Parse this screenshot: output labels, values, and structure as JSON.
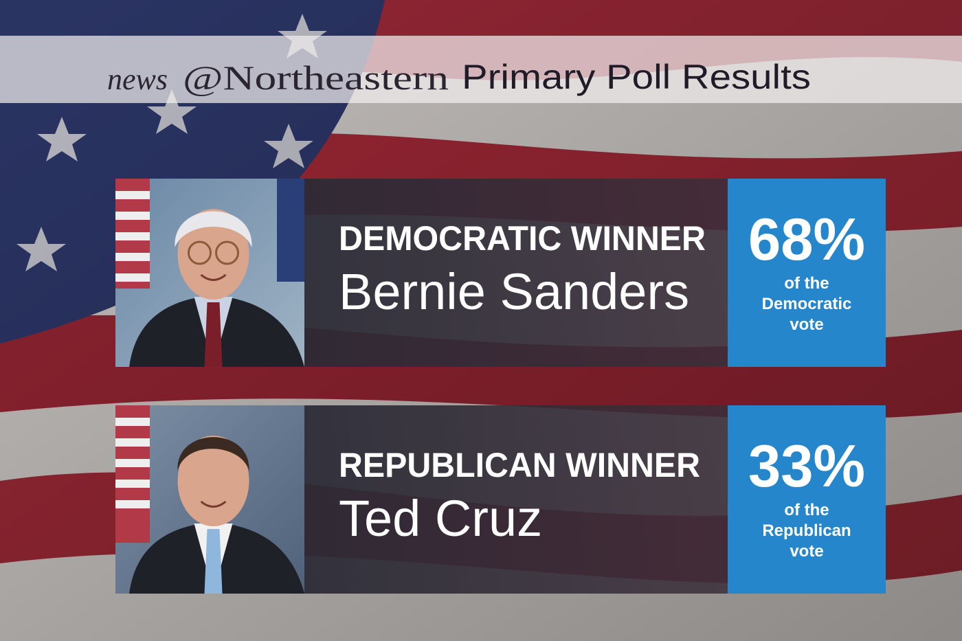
{
  "header": {
    "brand_prefix": "news",
    "brand_name": "@Northeastern",
    "title": "Primary Poll Results"
  },
  "results": [
    {
      "label": "DEMOCRATIC WINNER",
      "name": "Bernie Sanders",
      "percent": "68%",
      "note_lines": [
        "of the",
        "Democratic",
        "vote"
      ]
    },
    {
      "label": "REPUBLICAN WINNER",
      "name": "Ted Cruz",
      "percent": "33%",
      "note_lines": [
        "of the",
        "Republican",
        "vote"
      ]
    }
  ]
}
